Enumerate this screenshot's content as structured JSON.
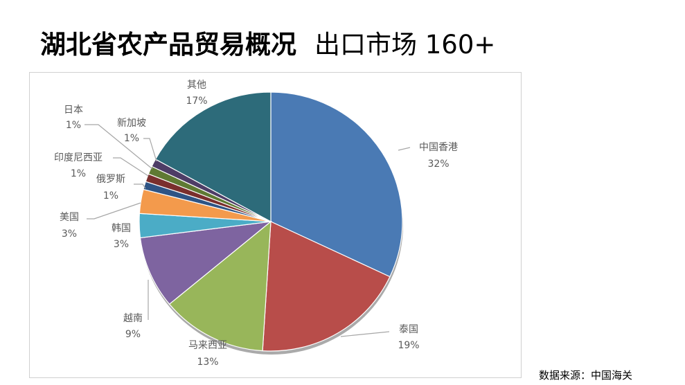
{
  "title": {
    "main": "湖北省农产品贸易概况",
    "sub": "出口市场 160+"
  },
  "source": "数据来源：中国海关",
  "chart_data": {
    "type": "pie",
    "title": "",
    "categories": [
      "中国香港",
      "泰国",
      "马来西亚",
      "越南",
      "韩国",
      "美国",
      "俄罗斯",
      "印度尼西亚",
      "新加坡",
      "日本",
      "其他"
    ],
    "values": [
      32,
      19,
      13,
      9,
      3,
      3,
      1,
      1,
      1,
      1,
      17
    ],
    "value_labels": [
      "32%",
      "19%",
      "13%",
      "9%",
      "3%",
      "3%",
      "1%",
      "1%",
      "1%",
      "1%",
      "17%"
    ],
    "colors": [
      "#4a7ab4",
      "#b84d4a",
      "#98b65a",
      "#7e64a0",
      "#4bacc6",
      "#f39a4c",
      "#2e5485",
      "#7a2f2d",
      "#5f7a33",
      "#4e3d66",
      "#2d6b7a"
    ],
    "start_angle": "12 o'clock",
    "direction": "clockwise",
    "legend": "none (data labels with leader lines)"
  }
}
